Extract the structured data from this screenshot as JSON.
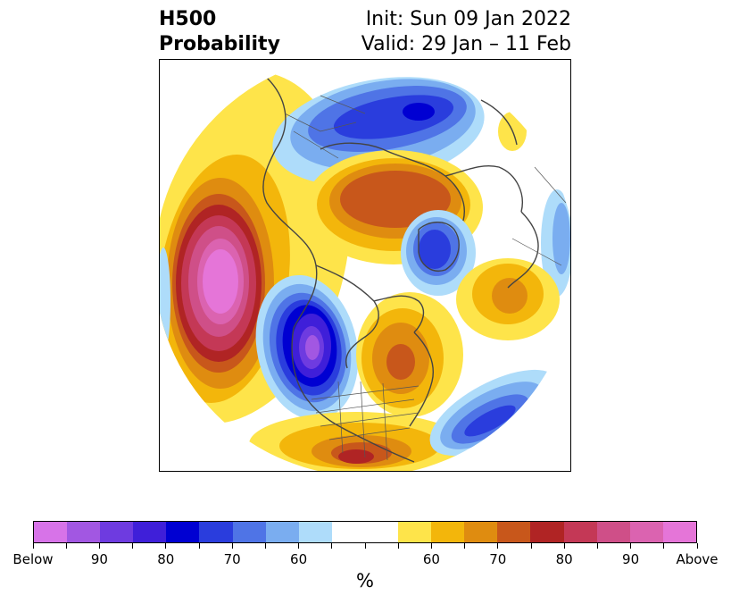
{
  "title": {
    "left_line1": "H500",
    "left_line2": "Probability",
    "right_line1": "Init: Sun 09 Jan 2022",
    "right_line2": "Valid: 29 Jan – 11 Feb"
  },
  "map": {
    "projection": "north polar stereographic",
    "features": [
      "coastlines",
      "country borders",
      "state/province borders"
    ],
    "anomalies": [
      {
        "region": "North Pacific / Gulf of Alaska",
        "category": "Above",
        "peak": "90-Above"
      },
      {
        "region": "Western Canada / Pacific Northwest",
        "category": "Below",
        "peak": "90-Below"
      },
      {
        "region": "Northern Eurasia / Siberia",
        "category": "Below",
        "peak": "80"
      },
      {
        "region": "Arctic Ocean / Siberian coast",
        "category": "Above",
        "peak": "70"
      },
      {
        "region": "Greenland / Baffin Bay",
        "category": "Below",
        "peak": "80"
      },
      {
        "region": "Eastern Canada / Hudson Bay",
        "category": "Above",
        "peak": "70"
      },
      {
        "region": "Western North Atlantic",
        "category": "Below",
        "peak": "80"
      },
      {
        "region": "Southern United States",
        "category": "Above",
        "peak": "80"
      },
      {
        "region": "Western Europe",
        "category": "Above",
        "peak": "70"
      }
    ]
  },
  "colorbar": {
    "colors": [
      "#d773e8",
      "#a257e2",
      "#6e3be0",
      "#3f1fd9",
      "#0000d2",
      "#2a3ddd",
      "#4f74e6",
      "#7aadf0",
      "#aedcfa",
      "#ffffff",
      "#ffffff",
      "#fee44a",
      "#f3b60b",
      "#df8c10",
      "#c8571b",
      "#b02424",
      "#c43856",
      "#cf4f88",
      "#db63b0",
      "#e575d8"
    ],
    "tick_labels": [
      "Below",
      "90",
      "80",
      "70",
      "60",
      "60",
      "70",
      "80",
      "90",
      "Above"
    ],
    "unit_label": "%"
  }
}
